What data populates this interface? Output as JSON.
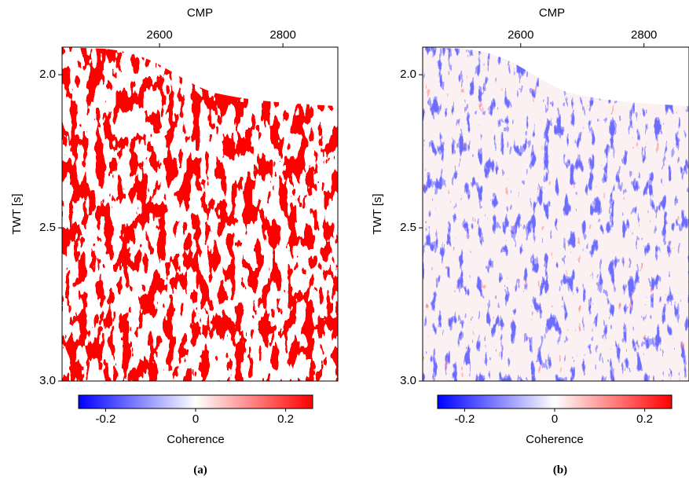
{
  "chart_data": [
    {
      "type": "image",
      "x_label": "CMP",
      "y_label": "TWT [s]",
      "xlim": [
        2442,
        2889
      ],
      "xticks": [
        2600,
        2800
      ],
      "ylim": [
        3.0,
        1.91
      ],
      "yticks": [
        {
          "value": 2.0,
          "label": "2.0"
        },
        2.5,
        {
          "value": 3.0,
          "label": "3.0"
        }
      ],
      "colorbar": {
        "label": "Coherence",
        "lim": [
          -0.26,
          0.26
        ],
        "ticks": [
          -0.2,
          0,
          0.2
        ],
        "colors": [
          "#0000ff",
          "#ffffff",
          "#ff0000"
        ]
      },
      "caption": "(a)"
    },
    {
      "type": "image",
      "x_label": "CMP",
      "y_label": "TWT [s]",
      "xlim": [
        2441,
        2873
      ],
      "xticks": [
        2600,
        2800
      ],
      "ylim": [
        3.0,
        1.91
      ],
      "yticks": [
        {
          "value": 2.0,
          "label": "2.0"
        },
        2.5,
        {
          "value": 3.0,
          "label": "3.0"
        }
      ],
      "colorbar": {
        "label": "Coherence",
        "lim": [
          -0.26,
          0.26
        ],
        "ticks": [
          -0.2,
          0,
          0.2
        ],
        "colors": [
          "#0000ff",
          "#ffffff",
          "#ff0000"
        ]
      },
      "caption": "(b)"
    }
  ]
}
